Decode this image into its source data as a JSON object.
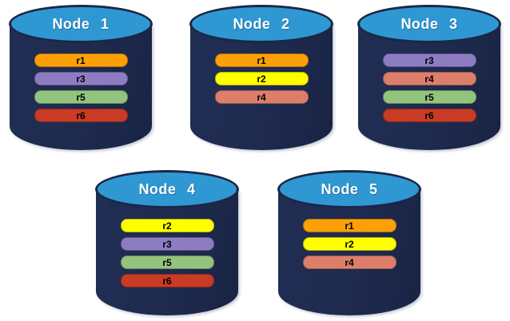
{
  "colors": {
    "cylinder_top_blue": "#2f98d3",
    "cylinder_body_navy": "#1e2a4e",
    "cylinder_outline_navy": "#1b2747",
    "shard_r1_orange": "#fda007",
    "shard_r2_yellow": "#ffff00",
    "shard_r3_purple": "#8e7cc3",
    "shard_r4_salmon": "#dd7e6b",
    "shard_r5_green": "#93c47d",
    "shard_r6_red": "#c93b24"
  },
  "nodes": [
    {
      "name": "Node 1",
      "shards": [
        {
          "label": "r1",
          "color": "#fda007"
        },
        {
          "label": "r3",
          "color": "#8e7cc3"
        },
        {
          "label": "r5",
          "color": "#93c47d"
        },
        {
          "label": "r6",
          "color": "#c93b24"
        }
      ]
    },
    {
      "name": "Node 2",
      "shards": [
        {
          "label": "r1",
          "color": "#fda007"
        },
        {
          "label": "r2",
          "color": "#ffff00"
        },
        {
          "label": "r4",
          "color": "#dd7e6b"
        }
      ]
    },
    {
      "name": "Node 3",
      "shards": [
        {
          "label": "r3",
          "color": "#8e7cc3"
        },
        {
          "label": "r4",
          "color": "#dd7e6b"
        },
        {
          "label": "r5",
          "color": "#93c47d"
        },
        {
          "label": "r6",
          "color": "#c93b24"
        }
      ]
    },
    {
      "name": "Node 4",
      "shards": [
        {
          "label": "r2",
          "color": "#ffff00"
        },
        {
          "label": "r3",
          "color": "#8e7cc3"
        },
        {
          "label": "r5",
          "color": "#93c47d"
        },
        {
          "label": "r6",
          "color": "#c93b24"
        }
      ]
    },
    {
      "name": "Node 5",
      "shards": [
        {
          "label": "r1",
          "color": "#fda007"
        },
        {
          "label": "r2",
          "color": "#ffff00"
        },
        {
          "label": "r4",
          "color": "#dd7e6b"
        }
      ]
    }
  ]
}
